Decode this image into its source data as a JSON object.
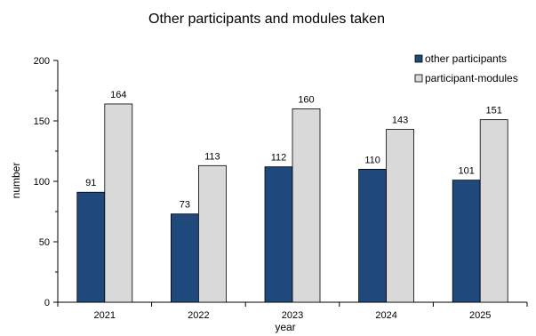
{
  "chart_data": {
    "type": "bar",
    "title": "Other participants and modules taken",
    "xlabel": "year",
    "ylabel": "number",
    "categories": [
      "2021",
      "2022",
      "2023",
      "2024",
      "2025"
    ],
    "series": [
      {
        "name": "other participants",
        "values": [
          91,
          73,
          112,
          110,
          101
        ],
        "color": "#1f497d"
      },
      {
        "name": "participant-modules",
        "values": [
          164,
          113,
          160,
          143,
          151
        ],
        "color": "#d9d9d9"
      }
    ],
    "ylim": [
      0,
      200
    ],
    "yticks": [
      0,
      50,
      100,
      150,
      200
    ],
    "grid": false,
    "legend_position": "top-right"
  }
}
